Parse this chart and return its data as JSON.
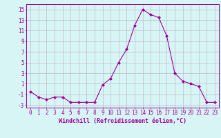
{
  "x": [
    0,
    1,
    2,
    3,
    4,
    5,
    6,
    7,
    8,
    9,
    10,
    11,
    12,
    13,
    14,
    15,
    16,
    17,
    18,
    19,
    20,
    21,
    22,
    23
  ],
  "y": [
    -0.5,
    -1.5,
    -2.0,
    -1.5,
    -1.5,
    -2.5,
    -2.5,
    -2.5,
    -2.5,
    0.8,
    2.0,
    5.0,
    7.5,
    12.0,
    15.0,
    14.0,
    13.5,
    10.0,
    3.0,
    1.5,
    1.0,
    0.5,
    -2.5,
    -2.5
  ],
  "line_color": "#990099",
  "marker": "D",
  "marker_size": 2,
  "bg_color": "#d8f5f5",
  "grid_color": "#bbbbcc",
  "xlabel": "Windchill (Refroidissement éolien,°C)",
  "ylim": [
    -3.5,
    16
  ],
  "xlim": [
    -0.5,
    23.5
  ],
  "yticks": [
    -3,
    -1,
    1,
    3,
    5,
    7,
    9,
    11,
    13,
    15
  ],
  "xtick_labels": [
    "0",
    "1",
    "2",
    "3",
    "4",
    "5",
    "6",
    "7",
    "8",
    "9",
    "10",
    "11",
    "12",
    "13",
    "14",
    "15",
    "16",
    "17",
    "18",
    "19",
    "20",
    "21",
    "22",
    "23"
  ],
  "label_fontsize": 6,
  "tick_fontsize": 5.5
}
